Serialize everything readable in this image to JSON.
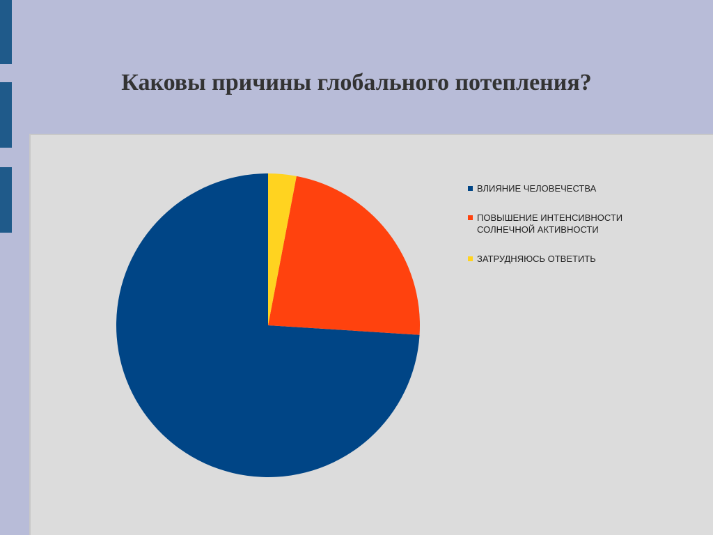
{
  "chart_data": {
    "type": "pie",
    "title": "Каковы причины глобального потепления?",
    "categories": [
      "ВЛИЯНИЕ ЧЕЛОВЕЧЕСТВА",
      "ПОВЫШЕНИЕ ИНТЕНСИВНОСТИ СОЛНЕЧНОЙ АКТИВНОСТИ",
      "ЗАТРУДНЯЮСЬ ОТВЕТИТЬ"
    ],
    "values": [
      74,
      23,
      3
    ],
    "colors": [
      "#004586",
      "#ff420e",
      "#ffd320"
    ]
  }
}
